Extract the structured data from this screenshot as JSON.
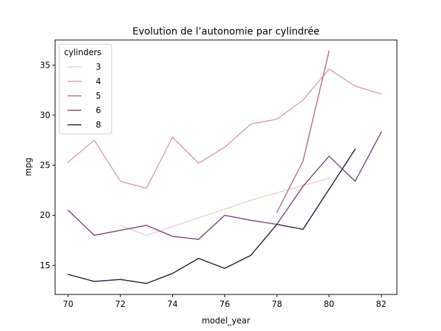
{
  "chart_data": {
    "type": "line",
    "title": "Evolution de l’autonomie par cylindrée",
    "xlabel": "model_year",
    "ylabel": "mpg",
    "xlim": [
      69.5,
      82.6
    ],
    "ylim": [
      12.1,
      37.5
    ],
    "xticks": [
      70,
      72,
      74,
      76,
      78,
      80,
      82
    ],
    "yticks": [
      15,
      20,
      25,
      30,
      35
    ],
    "grid": false,
    "legend": {
      "title": "cylinders",
      "placement": "top-left"
    },
    "series": [
      {
        "name": "3",
        "color": "#eed0cb",
        "x": [
          72,
          73,
          77,
          80
        ],
        "y": [
          19.0,
          18.0,
          21.5,
          23.7
        ]
      },
      {
        "name": "4",
        "color": "#d8a1b0",
        "x": [
          70,
          71,
          72,
          73,
          74,
          75,
          76,
          77,
          78,
          79,
          80,
          81,
          82
        ],
        "y": [
          25.3,
          27.5,
          23.4,
          22.7,
          27.8,
          25.2,
          26.8,
          29.1,
          29.6,
          31.5,
          34.6,
          32.9,
          32.1
        ]
      },
      {
        "name": "5",
        "color": "#b47096",
        "x": [
          78,
          79,
          80
        ],
        "y": [
          20.3,
          25.4,
          36.4
        ]
      },
      {
        "name": "6",
        "color": "#81487b",
        "x": [
          70,
          71,
          72,
          73,
          74,
          75,
          76,
          77,
          78,
          79,
          80,
          81,
          82
        ],
        "y": [
          20.5,
          18.0,
          18.5,
          19.0,
          17.9,
          17.6,
          20.0,
          19.5,
          19.1,
          22.9,
          25.9,
          23.4,
          28.3
        ]
      },
      {
        "name": "8",
        "color": "#2d1e3e",
        "x": [
          70,
          71,
          72,
          73,
          74,
          75,
          76,
          77,
          78,
          79,
          81
        ],
        "y": [
          14.1,
          13.4,
          13.6,
          13.2,
          14.2,
          15.7,
          14.7,
          16.0,
          19.1,
          18.6,
          26.6
        ]
      }
    ]
  }
}
